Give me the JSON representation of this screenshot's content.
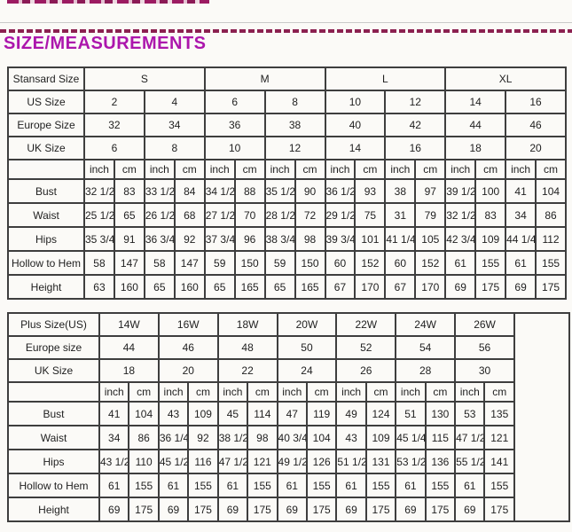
{
  "heading": {
    "title": "SIZE/MEASUREMENTS",
    "accent_color": "#ac16ac",
    "separator_color": "#8b2150"
  },
  "standard_table": {
    "corner_label": "Stansard Size",
    "size_groups": [
      "S",
      "M",
      "L",
      "XL"
    ],
    "size_rows": [
      {
        "label": "US Size",
        "bold": true,
        "values": [
          "2",
          "4",
          "6",
          "8",
          "10",
          "12",
          "14",
          "16"
        ]
      },
      {
        "label": "Europe Size",
        "bold": false,
        "values": [
          "32",
          "34",
          "36",
          "38",
          "40",
          "42",
          "44",
          "46"
        ]
      },
      {
        "label": "UK Size",
        "bold": false,
        "values": [
          "6",
          "8",
          "10",
          "12",
          "14",
          "16",
          "18",
          "20"
        ]
      }
    ],
    "units": [
      "inch",
      "cm",
      "inch",
      "cm",
      "inch",
      "cm",
      "inch",
      "cm",
      "inch",
      "cm",
      "inch",
      "cm",
      "inch",
      "cm",
      "inch",
      "cm"
    ],
    "measurement_rows": [
      {
        "label": "Bust",
        "values": [
          "32 1/2",
          "83",
          "33 1/2",
          "84",
          "34 1/2",
          "88",
          "35 1/2",
          "90",
          "36 1/2",
          "93",
          "38",
          "97",
          "39 1/2",
          "100",
          "41",
          "104"
        ]
      },
      {
        "label": "Waist",
        "values": [
          "25 1/2",
          "65",
          "26 1/2",
          "68",
          "27 1/2",
          "70",
          "28 1/2",
          "72",
          "29 1/2",
          "75",
          "31",
          "79",
          "32 1/2",
          "83",
          "34",
          "86"
        ]
      },
      {
        "label": "Hips",
        "values": [
          "35 3/4",
          "91",
          "36 3/4",
          "92",
          "37 3/4",
          "96",
          "38 3/4",
          "98",
          "39 3/4",
          "101",
          "41 1/4",
          "105",
          "42 3/4",
          "109",
          "44 1/4",
          "112"
        ]
      },
      {
        "label": "Hollow to Hem",
        "values": [
          "58",
          "147",
          "58",
          "147",
          "59",
          "150",
          "59",
          "150",
          "60",
          "152",
          "60",
          "152",
          "61",
          "155",
          "61",
          "155"
        ]
      },
      {
        "label": "Height",
        "values": [
          "63",
          "160",
          "65",
          "160",
          "65",
          "165",
          "65",
          "165",
          "67",
          "170",
          "67",
          "170",
          "69",
          "175",
          "69",
          "175"
        ]
      }
    ]
  },
  "plus_table": {
    "corner_label": "Plus Size(US)",
    "size_groups": [
      "14W",
      "16W",
      "18W",
      "20W",
      "22W",
      "24W",
      "26W"
    ],
    "size_rows": [
      {
        "label": "Europe size",
        "bold": false,
        "values": [
          "44",
          "46",
          "48",
          "50",
          "52",
          "54",
          "56"
        ]
      },
      {
        "label": "UK Size",
        "bold": false,
        "values": [
          "18",
          "20",
          "22",
          "24",
          "26",
          "28",
          "30"
        ]
      }
    ],
    "units": [
      "inch",
      "cm",
      "inch",
      "cm",
      "inch",
      "cm",
      "inch",
      "cm",
      "inch",
      "cm",
      "inch",
      "cm",
      "inch",
      "cm"
    ],
    "measurement_rows": [
      {
        "label": "Bust",
        "values": [
          "41",
          "104",
          "43",
          "109",
          "45",
          "114",
          "47",
          "119",
          "49",
          "124",
          "51",
          "130",
          "53",
          "135"
        ]
      },
      {
        "label": "Waist",
        "values": [
          "34",
          "86",
          "36 1/4",
          "92",
          "38 1/2",
          "98",
          "40 3/4",
          "104",
          "43",
          "109",
          "45 1/4",
          "115",
          "47 1/2",
          "121"
        ]
      },
      {
        "label": "Hips",
        "values": [
          "43 1/2",
          "110",
          "45 1/2",
          "116",
          "47 1/2",
          "121",
          "49 1/2",
          "126",
          "51 1/2",
          "131",
          "53 1/2",
          "136",
          "55 1/2",
          "141"
        ]
      },
      {
        "label": "Hollow to Hem",
        "values": [
          "61",
          "155",
          "61",
          "155",
          "61",
          "155",
          "61",
          "155",
          "61",
          "155",
          "61",
          "155",
          "61",
          "155"
        ]
      },
      {
        "label": "Height",
        "values": [
          "69",
          "175",
          "69",
          "175",
          "69",
          "175",
          "69",
          "175",
          "69",
          "175",
          "69",
          "175",
          "69",
          "175"
        ]
      }
    ]
  }
}
